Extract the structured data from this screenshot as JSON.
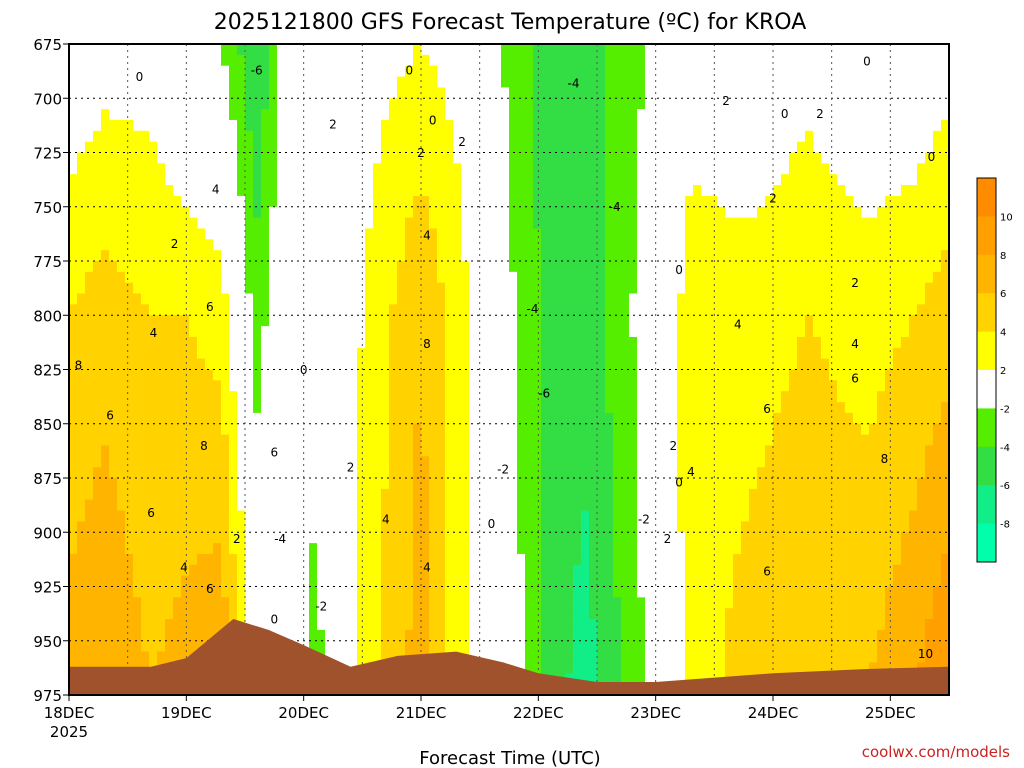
{
  "chart_data": {
    "type": "heatmap",
    "title": "2025121800 GFS Forecast Temperature (ºC) for KROA",
    "xlabel": "Forecast Time (UTC)",
    "ylabel": "",
    "x_axis": {
      "ticks": [
        {
          "label": "18DEC",
          "sublabel": "2025",
          "day": 0
        },
        {
          "label": "19DEC",
          "day": 1
        },
        {
          "label": "20DEC",
          "day": 2
        },
        {
          "label": "21DEC",
          "day": 3
        },
        {
          "label": "22DEC",
          "day": 4
        },
        {
          "label": "23DEC",
          "day": 5
        },
        {
          "label": "24DEC",
          "day": 6
        },
        {
          "label": "25DEC",
          "day": 7
        }
      ],
      "range": [
        0,
        7.5
      ]
    },
    "y_axis": {
      "ticks": [
        675,
        700,
        725,
        750,
        775,
        800,
        825,
        850,
        875,
        900,
        925,
        950,
        975
      ],
      "range": [
        675,
        975
      ],
      "inverted": true
    },
    "grid": true,
    "colorbar": {
      "labels": [
        "10",
        "8",
        "6",
        "4",
        "2",
        "-2",
        "-4",
        "-6",
        "-8"
      ],
      "bands": [
        {
          "min": 10,
          "max": 12,
          "color": "#ff8c00"
        },
        {
          "min": 8,
          "max": 10,
          "color": "#ff9f00"
        },
        {
          "min": 6,
          "max": 8,
          "color": "#ffb400"
        },
        {
          "min": 4,
          "max": 6,
          "color": "#ffd200"
        },
        {
          "min": 2,
          "max": 4,
          "color": "#ffff00"
        },
        {
          "min": -2,
          "max": 2,
          "color": "#ffffff"
        },
        {
          "min": -4,
          "max": -2,
          "color": "#55ee00"
        },
        {
          "min": -6,
          "max": -4,
          "color": "#33dd44"
        },
        {
          "min": -8,
          "max": -6,
          "color": "#11ee88"
        },
        {
          "min": -10,
          "max": -8,
          "color": "#00ffaa"
        }
      ]
    },
    "temperature_by_day": [
      {
        "day": 0.0,
        "upper": 0,
        "mid": 4,
        "low": 7
      },
      {
        "day": 0.3,
        "upper": 1,
        "mid": 5,
        "low": 8
      },
      {
        "day": 0.7,
        "upper": 1,
        "mid": 4,
        "low": 6
      },
      {
        "day": 1.0,
        "upper": -1,
        "mid": 4,
        "low": 7
      },
      {
        "day": 1.3,
        "upper": -2,
        "mid": 3,
        "low": 8
      },
      {
        "day": 1.6,
        "upper": -6,
        "mid": -3,
        "low": 1
      },
      {
        "day": 1.9,
        "upper": 0,
        "mid": 1,
        "low": -1
      },
      {
        "day": 2.1,
        "upper": 0,
        "mid": -1,
        "low": -3
      },
      {
        "day": 2.5,
        "upper": 1,
        "mid": 2,
        "low": 3
      },
      {
        "day": 3.0,
        "upper": 2,
        "mid": 6,
        "low": 7
      },
      {
        "day": 3.4,
        "upper": 1,
        "mid": 2,
        "low": 2
      },
      {
        "day": 3.8,
        "upper": -3,
        "mid": -2,
        "low": -1
      },
      {
        "day": 4.1,
        "upper": -5,
        "mid": -5,
        "low": -5
      },
      {
        "day": 4.4,
        "upper": -4,
        "mid": -5,
        "low": -7
      },
      {
        "day": 4.7,
        "upper": -4,
        "mid": -3,
        "low": -4
      },
      {
        "day": 5.0,
        "upper": -1,
        "mid": 0,
        "low": -1
      },
      {
        "day": 5.3,
        "upper": 1,
        "mid": 3,
        "low": 3
      },
      {
        "day": 5.8,
        "upper": 0,
        "mid": 3,
        "low": 5
      },
      {
        "day": 6.3,
        "upper": 1,
        "mid": 4,
        "low": 6
      },
      {
        "day": 6.8,
        "upper": 0,
        "mid": 3,
        "low": 6
      },
      {
        "day": 7.2,
        "upper": 0,
        "mid": 4,
        "low": 8
      },
      {
        "day": 7.5,
        "upper": 1,
        "mid": 5,
        "low": 10
      }
    ],
    "terrain_pressure": [
      {
        "day": 0.0,
        "p": 962
      },
      {
        "day": 0.7,
        "p": 962
      },
      {
        "day": 1.0,
        "p": 958
      },
      {
        "day": 1.4,
        "p": 940
      },
      {
        "day": 1.7,
        "p": 945
      },
      {
        "day": 2.0,
        "p": 952
      },
      {
        "day": 2.4,
        "p": 962
      },
      {
        "day": 2.8,
        "p": 957
      },
      {
        "day": 3.3,
        "p": 955
      },
      {
        "day": 3.7,
        "p": 960
      },
      {
        "day": 4.0,
        "p": 965
      },
      {
        "day": 4.5,
        "p": 969
      },
      {
        "day": 5.0,
        "p": 969
      },
      {
        "day": 5.5,
        "p": 967
      },
      {
        "day": 6.0,
        "p": 965
      },
      {
        "day": 6.8,
        "p": 963
      },
      {
        "day": 7.5,
        "p": 962
      }
    ],
    "contour_labels": [
      {
        "text": "0",
        "day": 0.6,
        "p": 692
      },
      {
        "text": "-6",
        "day": 1.6,
        "p": 689
      },
      {
        "text": "0",
        "day": 2.9,
        "p": 689
      },
      {
        "text": "-4",
        "day": 4.3,
        "p": 695
      },
      {
        "text": "0",
        "day": 6.8,
        "p": 685
      },
      {
        "text": "2",
        "day": 5.6,
        "p": 703
      },
      {
        "text": "0",
        "day": 3.1,
        "p": 712
      },
      {
        "text": "0",
        "day": 6.1,
        "p": 709
      },
      {
        "text": "2",
        "day": 6.4,
        "p": 709
      },
      {
        "text": "2",
        "day": 2.25,
        "p": 714
      },
      {
        "text": "2",
        "day": 3.35,
        "p": 722
      },
      {
        "text": "2",
        "day": 3.0,
        "p": 727
      },
      {
        "text": "0",
        "day": 7.35,
        "p": 729
      },
      {
        "text": "4",
        "day": 1.25,
        "p": 744
      },
      {
        "text": "2",
        "day": 6.0,
        "p": 748
      },
      {
        "text": "-4",
        "day": 4.65,
        "p": 752
      },
      {
        "text": "2",
        "day": 0.9,
        "p": 769
      },
      {
        "text": "4",
        "day": 3.05,
        "p": 765
      },
      {
        "text": "0",
        "day": 5.2,
        "p": 781
      },
      {
        "text": "2",
        "day": 6.7,
        "p": 787
      },
      {
        "text": "6",
        "day": 1.2,
        "p": 798
      },
      {
        "text": "-4",
        "day": 3.95,
        "p": 799
      },
      {
        "text": "4",
        "day": 0.72,
        "p": 810
      },
      {
        "text": "4",
        "day": 5.7,
        "p": 806
      },
      {
        "text": "8",
        "day": 3.05,
        "p": 815
      },
      {
        "text": "4",
        "day": 6.7,
        "p": 815
      },
      {
        "text": "8",
        "day": 0.08,
        "p": 825
      },
      {
        "text": "0",
        "day": 2.0,
        "p": 827
      },
      {
        "text": "6",
        "day": 6.7,
        "p": 831
      },
      {
        "text": "-6",
        "day": 4.05,
        "p": 838
      },
      {
        "text": "6",
        "day": 0.35,
        "p": 848
      },
      {
        "text": "6",
        "day": 5.95,
        "p": 845
      },
      {
        "text": "8",
        "day": 1.15,
        "p": 862
      },
      {
        "text": "6",
        "day": 1.75,
        "p": 865
      },
      {
        "text": "2",
        "day": 5.15,
        "p": 862
      },
      {
        "text": "8",
        "day": 6.95,
        "p": 868
      },
      {
        "text": "2",
        "day": 2.4,
        "p": 872
      },
      {
        "text": "-2",
        "day": 3.7,
        "p": 873
      },
      {
        "text": "4",
        "day": 5.3,
        "p": 874
      },
      {
        "text": "0",
        "day": 5.2,
        "p": 879
      },
      {
        "text": "6",
        "day": 0.7,
        "p": 893
      },
      {
        "text": "0",
        "day": 3.6,
        "p": 898
      },
      {
        "text": "-2",
        "day": 4.9,
        "p": 896
      },
      {
        "text": "4",
        "day": 2.7,
        "p": 896
      },
      {
        "text": "2",
        "day": 1.43,
        "p": 905
      },
      {
        "text": "-4",
        "day": 1.8,
        "p": 905
      },
      {
        "text": "2",
        "day": 5.1,
        "p": 905
      },
      {
        "text": "4",
        "day": 0.98,
        "p": 918
      },
      {
        "text": "4",
        "day": 3.05,
        "p": 918
      },
      {
        "text": "6",
        "day": 5.95,
        "p": 920
      },
      {
        "text": "6",
        "day": 1.2,
        "p": 928
      },
      {
        "text": "-2",
        "day": 2.15,
        "p": 936
      },
      {
        "text": "0",
        "day": 1.75,
        "p": 942
      },
      {
        "text": "10",
        "day": 7.3,
        "p": 958
      }
    ]
  },
  "credit": "coolwx.com/models"
}
